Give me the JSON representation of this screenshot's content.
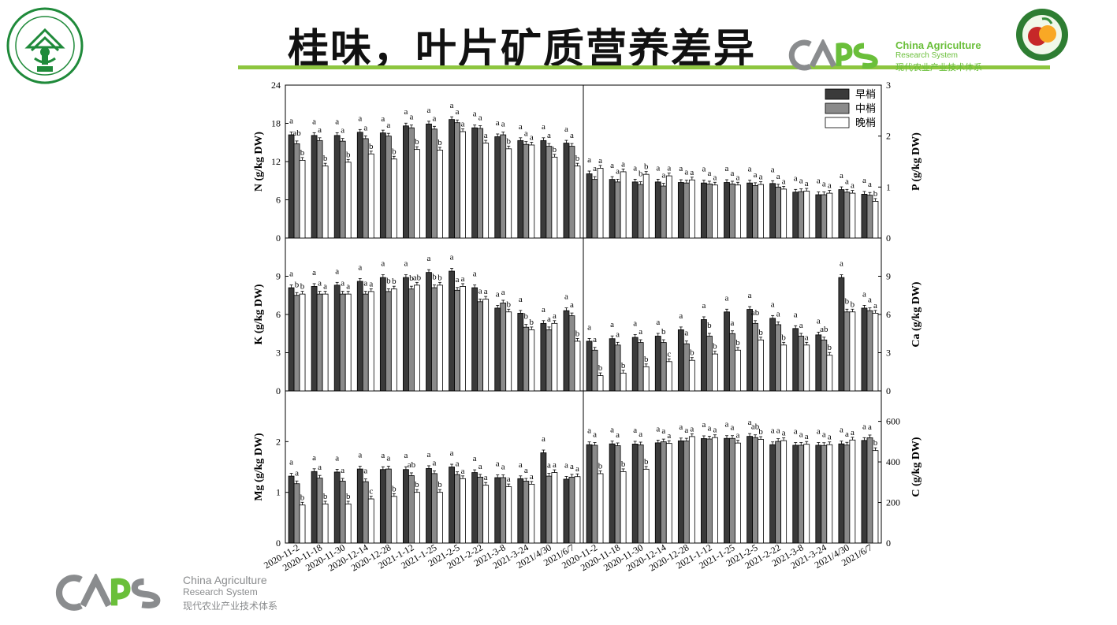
{
  "header": {
    "title": "桂味，叶片矿质营养差异",
    "logo_en_line1": "China Agriculture",
    "logo_en_line2": "Research System",
    "logo_cn": "现代农业产业技术体系",
    "university_seal_text": "SOUTH CHINA AGRICULTURAL UNIVERSITY 1909 华南农业大学"
  },
  "footer": {
    "logo_en_line1": "China Agriculture",
    "logo_en_line2": "Research System",
    "logo_cn": "现代农业产业技术体系"
  },
  "colors": {
    "early": "#3a3a3a",
    "middle": "#8a8a8a",
    "late": "#ffffff",
    "accent_green": "#8dc63f",
    "logo_gray": "#8a8c8e",
    "logo_green": "#6abf3a"
  },
  "chart_data": {
    "type": "bar",
    "legend": [
      "早梢",
      "中梢",
      "晚梢"
    ],
    "legend_position": "top-right of upper-right panel",
    "left_categories": [
      "2020-11-2",
      "2020-11-18",
      "2020-11-30",
      "2020-12-14",
      "2020-12-28",
      "2021-1-12",
      "2021-1-25",
      "2021-2-5",
      "2021-2-22",
      "2021-3-8",
      "2021-3-24",
      "2021/4/30",
      "2021/6/7"
    ],
    "right_categories": [
      "2020-11-2",
      "2020-11-18",
      "2020-11-30",
      "2020-12-14",
      "2020-12-28",
      "2021-1-12",
      "2021-1-25",
      "2021-2-5",
      "2021-2-22",
      "2021-3-8",
      "2021-3-24",
      "2021/4/30",
      "2021/6/7"
    ],
    "panels": [
      {
        "id": "N",
        "ylabel": "N (g/kg DW)",
        "axis": "left",
        "ylim": [
          0,
          24
        ],
        "ticks": [
          0,
          6,
          12,
          18,
          24
        ],
        "series": [
          {
            "name": "早梢",
            "values": [
              16.2,
              16.1,
              16.1,
              16.6,
              16.5,
              17.6,
              17.9,
              18.6,
              17.3,
              15.9,
              15.3,
              15.3,
              14.9
            ],
            "letters": [
              "a",
              "a",
              "a",
              "a",
              "a",
              "a",
              "a",
              "a",
              "a",
              "a",
              "a",
              "a",
              "a"
            ]
          },
          {
            "name": "中梢",
            "values": [
              14.8,
              15.3,
              15.2,
              15.6,
              16.0,
              17.3,
              17.1,
              18.1,
              17.2,
              16.2,
              14.7,
              14.4,
              14.4
            ],
            "letters": [
              "ab",
              "a",
              "a",
              "a",
              "a",
              "a",
              "a",
              "a",
              "a",
              "a",
              "a",
              "a",
              "a"
            ]
          },
          {
            "name": "晚梢",
            "values": [
              12.2,
              11.3,
              11.9,
              13.2,
              12.4,
              13.9,
              13.8,
              16.7,
              14.9,
              14.0,
              14.6,
              12.7,
              11.3
            ],
            "letters": [
              "b",
              "b",
              "b",
              "b",
              "b",
              "b",
              "b",
              "a",
              "a",
              "b",
              "a",
              "b",
              "b"
            ]
          }
        ]
      },
      {
        "id": "P",
        "ylabel": "P (g/kg DW)",
        "axis": "right",
        "ylim": [
          0,
          3
        ],
        "ticks": [
          0,
          1,
          2,
          3
        ],
        "series": [
          {
            "name": "早梢",
            "values": [
              1.26,
              1.15,
              1.1,
              1.1,
              1.09,
              1.08,
              1.09,
              1.08,
              1.07,
              0.9,
              0.85,
              0.95,
              0.86
            ],
            "letters": [
              "a",
              "a",
              "a",
              "a",
              "a",
              "a",
              "a",
              "a",
              "a",
              "a",
              "a",
              "a",
              "a"
            ]
          },
          {
            "name": "中梢",
            "values": [
              1.15,
              1.1,
              1.05,
              1.02,
              1.08,
              1.06,
              1.06,
              1.03,
              1.0,
              0.91,
              0.85,
              0.9,
              0.84
            ],
            "letters": [
              "a",
              "a",
              "b",
              "a",
              "a",
              "a",
              "a",
              "a",
              "a",
              "a",
              "a",
              "a",
              "a"
            ]
          },
          {
            "name": "晚梢",
            "values": [
              1.37,
              1.3,
              1.25,
              1.22,
              1.14,
              1.04,
              1.04,
              1.05,
              0.96,
              0.92,
              0.88,
              0.88,
              0.72
            ],
            "letters": [
              "a",
              "a",
              "b",
              "a",
              "a",
              "a",
              "a",
              "a",
              "a",
              "a",
              "a",
              "a",
              "b"
            ]
          }
        ]
      },
      {
        "id": "K",
        "ylabel": "K (g/kg DW)",
        "axis": "left",
        "ylim": [
          0,
          12
        ],
        "ticks": [
          0,
          3,
          6,
          9
        ],
        "series": [
          {
            "name": "早梢",
            "values": [
              8.1,
              8.2,
              8.3,
              8.6,
              8.9,
              8.9,
              9.3,
              9.4,
              8.1,
              6.5,
              6.1,
              5.3,
              6.3
            ],
            "letters": [
              "a",
              "a",
              "a",
              "a",
              "a",
              "a",
              "a",
              "a",
              "a",
              "a",
              "a",
              "a",
              "a"
            ]
          },
          {
            "name": "中梢",
            "values": [
              7.5,
              7.6,
              7.6,
              7.6,
              7.8,
              8.0,
              8.1,
              7.9,
              7.0,
              6.9,
              5.0,
              4.8,
              5.9
            ],
            "letters": [
              "b",
              "a",
              "a",
              "a",
              "b",
              "b",
              "b",
              "a",
              "a",
              "a",
              "b",
              "a",
              "a"
            ]
          },
          {
            "name": "晚梢",
            "values": [
              7.6,
              7.6,
              7.6,
              7.8,
              8.0,
              8.3,
              8.3,
              8.2,
              7.2,
              6.2,
              4.8,
              5.3,
              3.9
            ],
            "letters": [
              "b",
              "a",
              "a",
              "a",
              "b",
              "ab",
              "b",
              "a",
              "a",
              "b",
              "b",
              "a",
              "b"
            ]
          }
        ]
      },
      {
        "id": "Ca",
        "ylabel": "Ca (g/kg DW)",
        "axis": "right",
        "ylim": [
          0,
          12
        ],
        "ticks": [
          0,
          3,
          6,
          9
        ],
        "series": [
          {
            "name": "早梢",
            "values": [
              3.9,
              4.1,
              4.2,
              4.3,
              4.8,
              5.6,
              6.2,
              6.4,
              5.7,
              4.9,
              4.4,
              8.9,
              6.5
            ],
            "letters": [
              "a",
              "a",
              "a",
              "a",
              "a",
              "a",
              "a",
              "a",
              "a",
              "a",
              "a",
              "a",
              "a"
            ]
          },
          {
            "name": "中梢",
            "values": [
              3.2,
              3.6,
              3.8,
              3.8,
              3.7,
              4.3,
              4.5,
              5.3,
              5.2,
              4.3,
              4.0,
              6.2,
              6.3
            ],
            "letters": [
              "a",
              "a",
              "a",
              "b",
              "a",
              "b",
              "a",
              "ab",
              "a",
              "a",
              "ab",
              "b",
              "a"
            ]
          },
          {
            "name": "晚梢",
            "values": [
              1.2,
              1.4,
              1.9,
              2.3,
              2.4,
              2.9,
              3.2,
              4.0,
              3.6,
              3.6,
              2.8,
              6.2,
              6.1
            ],
            "letters": [
              "b",
              "b",
              "b",
              "c",
              "b",
              "b",
              "b",
              "b",
              "b",
              "a",
              "b",
              "b",
              "a"
            ]
          }
        ]
      },
      {
        "id": "Mg",
        "ylabel": "Mg (g/kg DW)",
        "axis": "left",
        "ylim": [
          0,
          3
        ],
        "ticks": [
          0,
          1,
          2
        ],
        "series": [
          {
            "name": "早梢",
            "values": [
              1.32,
              1.41,
              1.4,
              1.46,
              1.45,
              1.45,
              1.47,
              1.5,
              1.39,
              1.29,
              1.27,
              1.78,
              1.26
            ],
            "letters": [
              "a",
              "a",
              "a",
              "a",
              "a",
              "a",
              "a",
              "a",
              "a",
              "a",
              "a",
              "a",
              "a"
            ]
          },
          {
            "name": "中梢",
            "values": [
              1.17,
              1.28,
              1.22,
              1.21,
              1.46,
              1.33,
              1.37,
              1.35,
              1.3,
              1.29,
              1.22,
              1.32,
              1.3
            ],
            "letters": [
              "a",
              "a",
              "a",
              "a",
              "a",
              "ab",
              "a",
              "a",
              "a",
              "a",
              "a",
              "a",
              "a"
            ]
          },
          {
            "name": "晚梢",
            "values": [
              0.75,
              0.77,
              0.77,
              0.87,
              0.92,
              1.0,
              1.0,
              1.27,
              1.14,
              1.11,
              1.16,
              1.39,
              1.31
            ],
            "letters": [
              "b",
              "b",
              "b",
              "c",
              "b",
              "b",
              "b",
              "a",
              "a",
              "a",
              "a",
              "a",
              "a"
            ]
          }
        ]
      },
      {
        "id": "C",
        "ylabel": "C (g/kg DW)",
        "axis": "right",
        "ylim": [
          0,
          750
        ],
        "ticks": [
          0,
          200,
          400,
          600
        ],
        "series": [
          {
            "name": "早梢",
            "values": [
              485,
              489,
              488,
              494,
              504,
              515,
              516,
              526,
              485,
              482,
              482,
              489,
              506
            ],
            "letters": [
              "a",
              "a",
              "a",
              "a",
              "a",
              "a",
              "a",
              "a",
              "a",
              "a",
              "a",
              "a",
              "a"
            ]
          },
          {
            "name": "中梢",
            "values": [
              482,
              480,
              484,
              499,
              503,
              513,
              516,
              520,
              501,
              482,
              481,
              483,
              519
            ],
            "letters": [
              "a",
              "a",
              "a",
              "a",
              "a",
              "a",
              "a",
              "ab",
              "a",
              "a",
              "a",
              "a",
              "a"
            ]
          },
          {
            "name": "晚梢",
            "values": [
              342,
              352,
              364,
              491,
              525,
              520,
              493,
              511,
              505,
              487,
              485,
              508,
              456
            ],
            "letters": [
              "b",
              "b",
              "b",
              "a",
              "a",
              "a",
              "a",
              "b",
              "a",
              "a",
              "a",
              "a",
              "b"
            ]
          }
        ]
      }
    ]
  }
}
